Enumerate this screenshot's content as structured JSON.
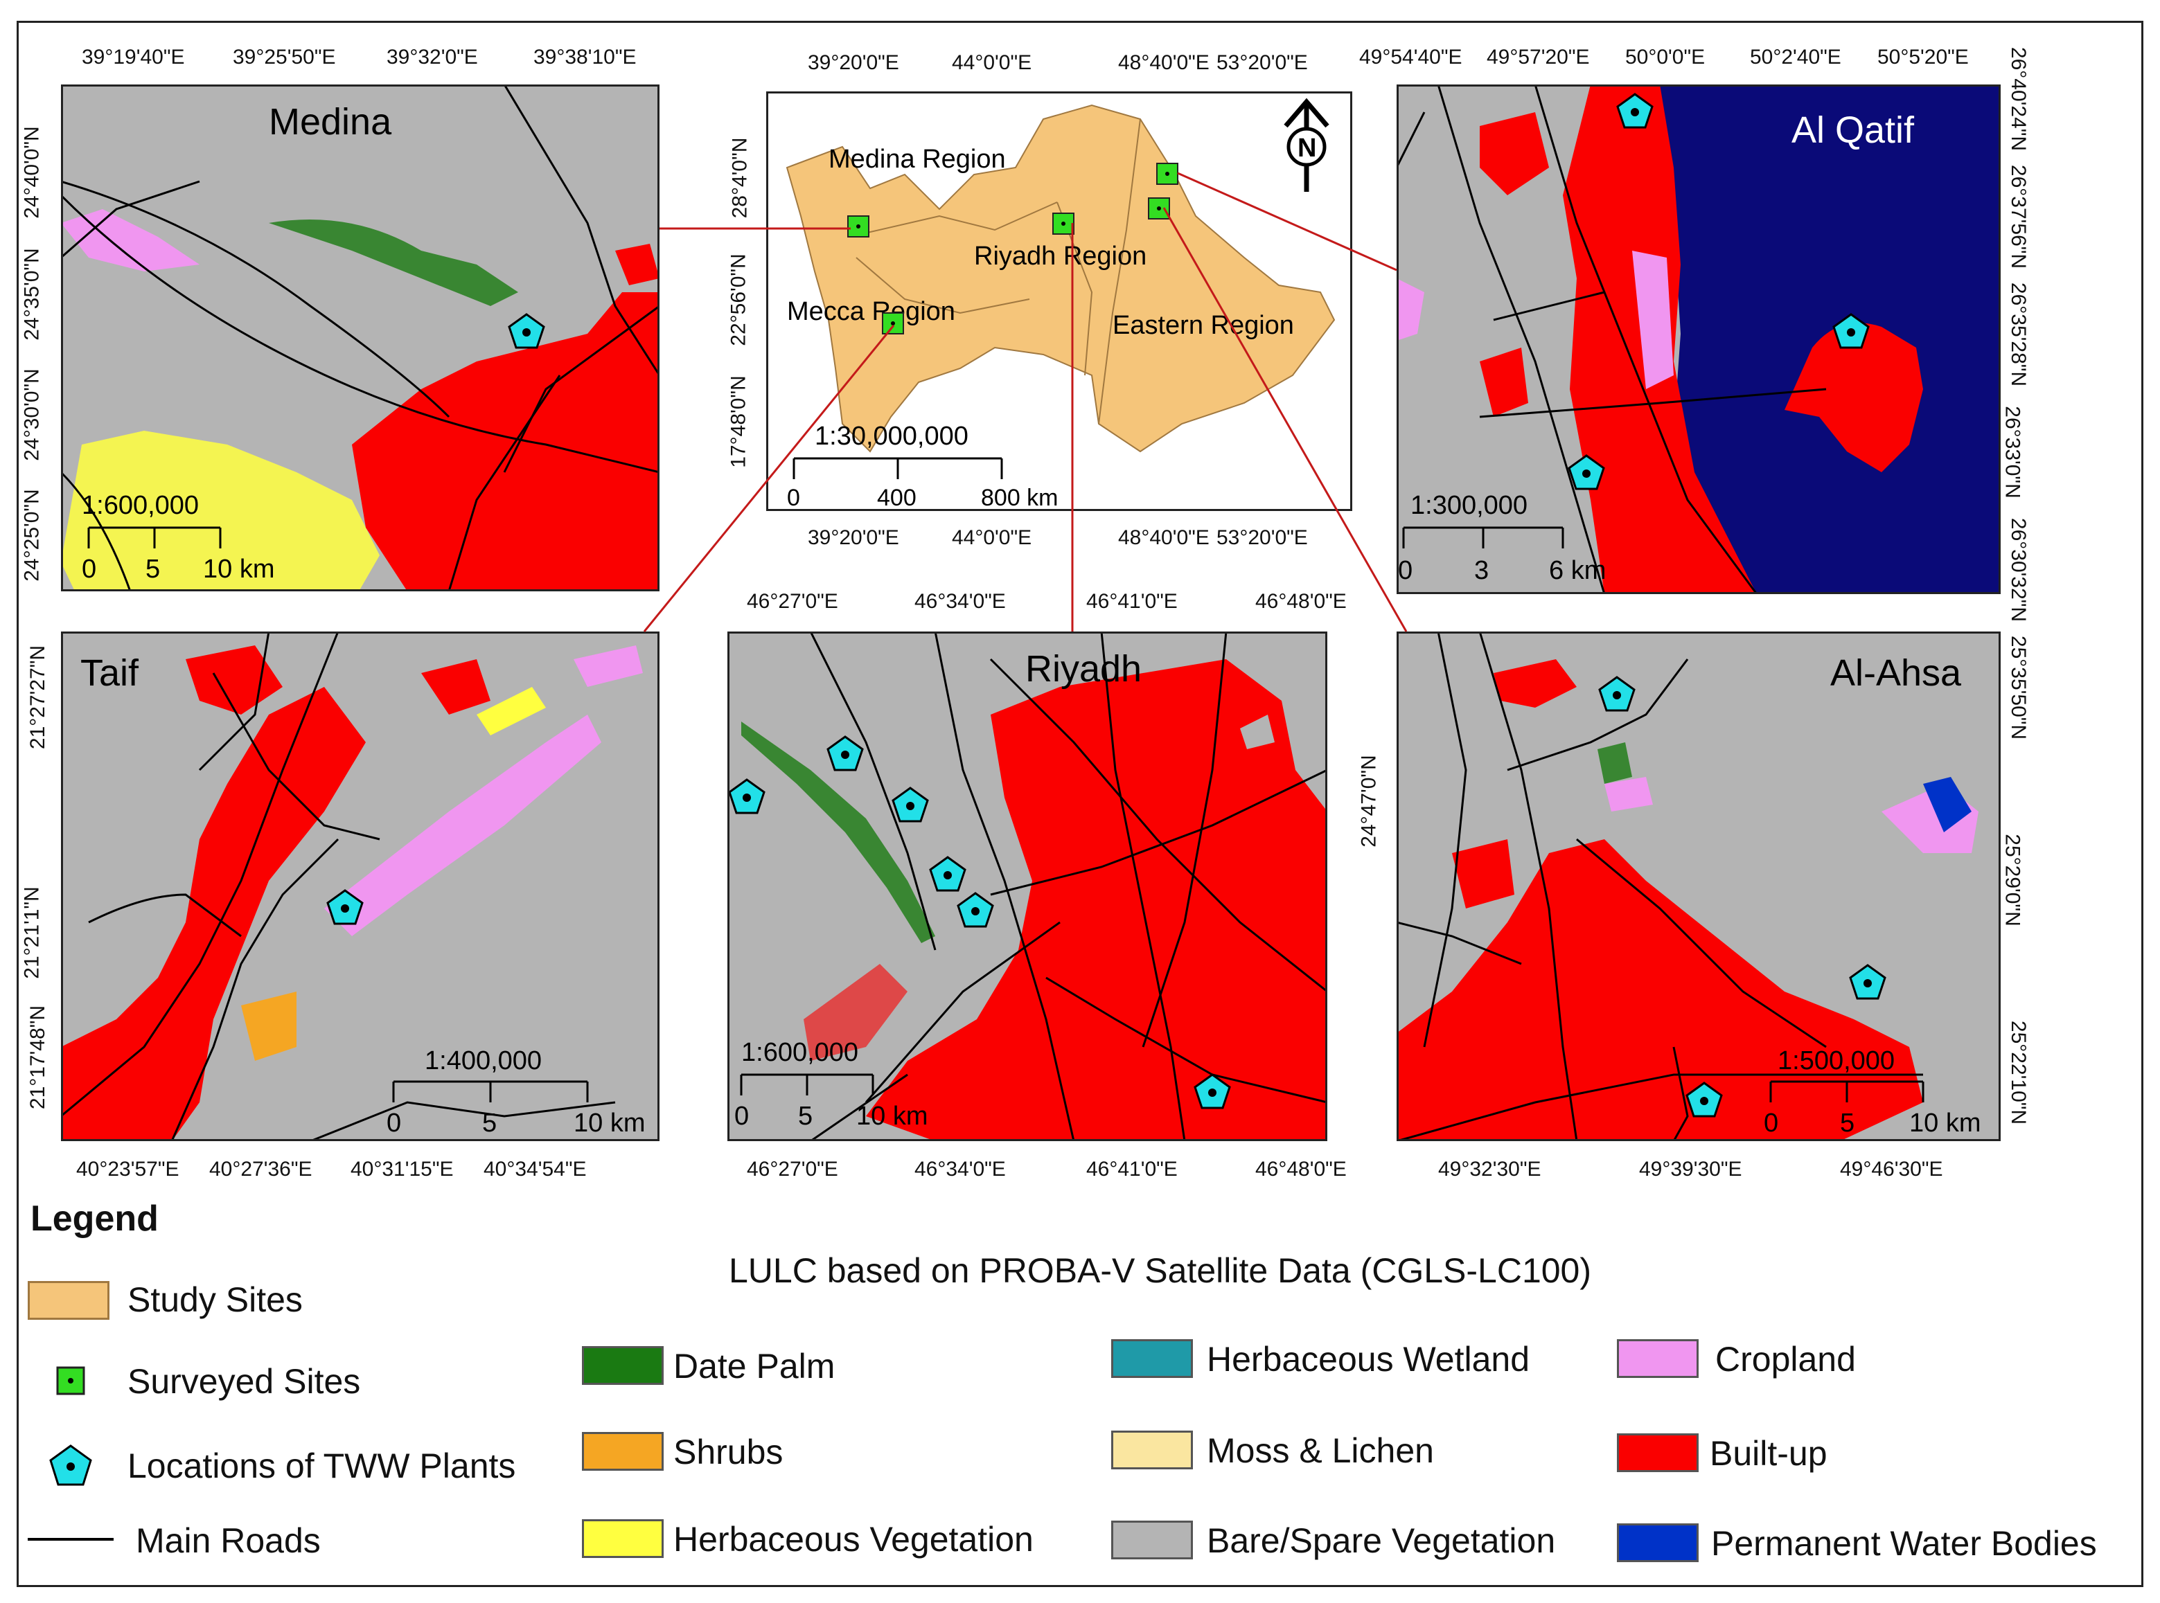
{
  "legend": {
    "title": "Legend",
    "study_sites": "Study Sites",
    "surveyed_sites": "Surveyed Sites",
    "tww_plants": "Locations of TWW Plants",
    "main_roads": "Main Roads",
    "lulc_title": "LULC based on PROBA-V Satellite Data (CGLS-LC100)",
    "classes": [
      {
        "label": "Date Palm",
        "color": "#1a7a12"
      },
      {
        "label": "Shrubs",
        "color": "#f5a623"
      },
      {
        "label": "Herbaceous Vegetation",
        "color": "#ffff40"
      },
      {
        "label": "Herbaceous Wetland",
        "color": "#1f9aa8"
      },
      {
        "label": "Moss & Lichen",
        "color": "#fae6a0"
      },
      {
        "label": "Bare/Spare Vegetation",
        "color": "#b4b4b4"
      },
      {
        "label": "Cropland",
        "color": "#f096f0"
      },
      {
        "label": "Built-up",
        "color": "#fa0000"
      },
      {
        "label": "Permanent Water Bodies",
        "color": "#0032c8"
      }
    ],
    "study_site_color": "#f5c57a",
    "surveyed_color": "#33dd22",
    "tww_color": "#22e0e8"
  },
  "overview": {
    "regions": [
      "Medina Region",
      "Riyadh Region",
      "Mecca Region",
      "Eastern Region"
    ],
    "scale": "1:30,000,000",
    "scale_ticks": [
      "0",
      "400",
      "800 km"
    ],
    "top_ticks": [
      "39°20'0\"E",
      "44°0'0\"E",
      "48°40'0\"E",
      "53°20'0\"E"
    ],
    "bottom_ticks": [
      "39°20'0\"E",
      "44°0'0\"E",
      "48°40'0\"E",
      "53°20'0\"E"
    ],
    "left_ticks": [
      "28°4'0\"N",
      "22°56'0\"N",
      "17°48'0\"N"
    ],
    "north": "N"
  },
  "panels": {
    "medina": {
      "name": "Medina",
      "scale": "1:600,000",
      "scale_ticks": [
        "0",
        "5",
        "10 km"
      ],
      "top_ticks": [
        "39°19'40\"E",
        "39°25'50\"E",
        "39°32'0\"E",
        "39°38'10\"E"
      ],
      "left_ticks": [
        "24°40'0\"N",
        "24°35'0\"N",
        "24°30'0\"N",
        "24°25'0\"N"
      ]
    },
    "qatif": {
      "name": "Al Qatif",
      "scale": "1:300,000",
      "scale_ticks": [
        "0",
        "3",
        "6 km"
      ],
      "top_ticks": [
        "49°54'40\"E",
        "49°57'20\"E",
        "50°0'0\"E",
        "50°2'40\"E",
        "50°5'20\"E"
      ],
      "right_ticks": [
        "26°40'24\"N",
        "26°37'56\"N",
        "26°35'28\"N",
        "26°33'0\"N",
        "26°30'32\"N"
      ]
    },
    "taif": {
      "name": "Taif",
      "scale": "1:400,000",
      "scale_ticks": [
        "0",
        "5",
        "10 km"
      ],
      "bottom_ticks": [
        "40°23'57\"E",
        "40°27'36\"E",
        "40°31'15\"E",
        "40°34'54\"E"
      ],
      "left_ticks": [
        "21°27'27\"N",
        "21°21'1\"N",
        "21°17'48\"N"
      ]
    },
    "riyadh": {
      "name": "Riyadh",
      "scale": "1:600,000",
      "scale_ticks": [
        "0",
        "5",
        "10 km"
      ],
      "top_ticks": [
        "46°27'0\"E",
        "46°34'0\"E",
        "46°41'0\"E",
        "46°48'0\"E"
      ],
      "bottom_ticks": [
        "46°27'0\"E",
        "46°34'0\"E",
        "46°41'0\"E",
        "46°48'0\"E"
      ],
      "left_ticks": [
        "24°47'0\"N"
      ]
    },
    "ahsa": {
      "name": "Al-Ahsa",
      "scale": "1:500,000",
      "scale_ticks": [
        "0",
        "5",
        "10 km"
      ],
      "bottom_ticks": [
        "49°32'30\"E",
        "49°39'30\"E",
        "49°46'30\"E"
      ],
      "right_ticks": [
        "25°35'50\"N",
        "25°29'0\"N",
        "25°22'10\"N"
      ]
    }
  }
}
